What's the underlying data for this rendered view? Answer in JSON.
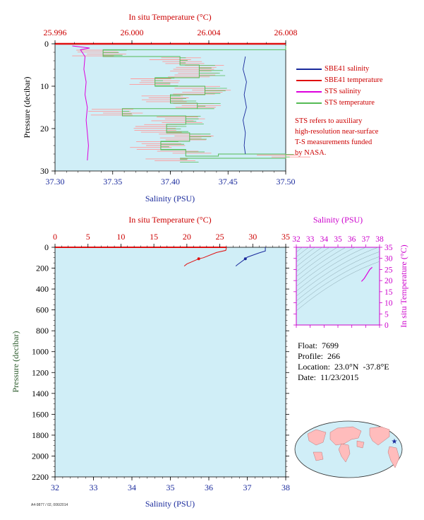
{
  "colors": {
    "plot_bg": "#d0eef7",
    "sbe_salinity": "#1a2a9c",
    "sbe_temperature": "#e01010",
    "sts_salinity": "#dd00dd",
    "sts_temperature": "#55bb55",
    "sts_temperature_band": "#ff9a9a",
    "axis_red": "#cc0000",
    "axis_blue": "#1a2a9c",
    "axis_green": "#2a5a2a",
    "axis_magenta": "#cc00cc"
  },
  "legend": {
    "items": [
      {
        "label": "SBE41 salinity",
        "color": "#1a2a9c"
      },
      {
        "label": "SBE41 temperature",
        "color": "#e01010"
      },
      {
        "label": "STS salinity",
        "color": "#dd00dd"
      },
      {
        "label": "STS temperature",
        "color": "#55bb55"
      }
    ]
  },
  "note": {
    "lines": [
      "STS refers to auxiliary",
      "high-resolution near-surface",
      "T-S measurements funded",
      "by NASA."
    ]
  },
  "info": {
    "float": "Float:  7699",
    "profile": "Profile:  266",
    "location": "Location:  23.0°N  -37.8°E",
    "date": "Date:  11/23/2015"
  },
  "footer": {
    "id": "A4-9877 / 02, 006/2014"
  },
  "chart_data": [
    {
      "id": "top-profile",
      "type": "line",
      "title": "",
      "top_axis_label": "In situ Temperature (°C)",
      "top_ticks": [
        "25.996",
        "26.000",
        "26.004",
        "26.008"
      ],
      "top_range": [
        25.996,
        26.008
      ],
      "xlabel": "Salinity (PSU)",
      "x_ticks": [
        "37.30",
        "37.35",
        "37.40",
        "37.45",
        "37.50"
      ],
      "xlim": [
        37.3,
        37.5
      ],
      "ylabel": "Pressure (decibar)",
      "y_ticks": [
        "0",
        "10",
        "20",
        "30"
      ],
      "ylim": [
        30,
        0
      ],
      "series": [
        {
          "name": "SBE41 salinity",
          "axis": "salinity",
          "points": [
            [
              37.465,
              3
            ],
            [
              37.463,
              6
            ],
            [
              37.466,
              9
            ],
            [
              37.464,
              12
            ],
            [
              37.466,
              15
            ],
            [
              37.463,
              18
            ],
            [
              37.465,
              21
            ],
            [
              37.464,
              24
            ],
            [
              37.465,
              26
            ]
          ]
        },
        {
          "name": "STS salinity",
          "axis": "salinity",
          "points": [
            [
              37.315,
              0.5
            ],
            [
              37.33,
              1.0
            ],
            [
              37.322,
              1.4
            ],
            [
              37.326,
              3
            ],
            [
              37.325,
              6
            ],
            [
              37.327,
              9
            ],
            [
              37.326,
              12
            ],
            [
              37.328,
              15
            ],
            [
              37.327,
              18
            ],
            [
              37.328,
              21
            ],
            [
              37.329,
              24
            ],
            [
              37.328,
              27.5
            ]
          ]
        },
        {
          "name": "STS temperature",
          "axis": "temperature",
          "points": [
            [
              26.008,
              0.5
            ],
            [
              25.9985,
              1.4
            ],
            [
              26.0025,
              3
            ],
            [
              26.0035,
              5
            ],
            [
              26.0012,
              8
            ],
            [
              26.0038,
              10
            ],
            [
              26.002,
              12
            ],
            [
              26.0034,
              14
            ],
            [
              25.9995,
              15.3
            ],
            [
              26.0028,
              17
            ],
            [
              26.0018,
              19
            ],
            [
              26.003,
              21
            ],
            [
              26.0015,
              23
            ],
            [
              26.0028,
              25
            ],
            [
              26.0045,
              26.5
            ],
            [
              26.008,
              26
            ],
            [
              26.0025,
              27
            ]
          ]
        }
      ],
      "note_visible": "pink band behind STS temperature trace"
    },
    {
      "id": "bottom-profile",
      "type": "line",
      "top_axis_label": "In situ Temperature (°C)",
      "top_ticks": [
        "0",
        "5",
        "10",
        "15",
        "20",
        "25",
        "30",
        "35"
      ],
      "top_range": [
        0,
        35
      ],
      "xlabel": "Salinity (PSU)",
      "x_ticks": [
        "32",
        "33",
        "34",
        "35",
        "36",
        "37",
        "38"
      ],
      "xlim": [
        32,
        38
      ],
      "ylabel": "Pressure (decibar)",
      "y_ticks": [
        "0",
        "200",
        "400",
        "600",
        "800",
        "1000",
        "1200",
        "1400",
        "1600",
        "1800",
        "2000",
        "2200"
      ],
      "ylim": [
        2200,
        0
      ],
      "series": [
        {
          "name": "SBE41 temperature",
          "axis": "temperature",
          "points": [
            [
              26.0,
              0
            ],
            [
              26.0,
              5
            ],
            [
              25.9,
              30
            ],
            [
              24.5,
              50
            ],
            [
              22.5,
              100
            ],
            [
              21.8,
              110
            ],
            [
              20.0,
              160
            ],
            [
              19.6,
              180
            ]
          ]
        },
        {
          "name": "SBE41 salinity",
          "axis": "salinity",
          "points": [
            [
              37.47,
              0
            ],
            [
              37.47,
              35
            ],
            [
              37.3,
              55
            ],
            [
              37.0,
              95
            ],
            [
              36.95,
              110
            ],
            [
              36.75,
              165
            ],
            [
              36.7,
              180
            ]
          ]
        }
      ]
    },
    {
      "id": "ts-diagram",
      "type": "line",
      "top_axis_label": "Salinity (PSU)",
      "x_ticks": [
        "32",
        "33",
        "34",
        "35",
        "36",
        "37",
        "38"
      ],
      "xlim": [
        32,
        38
      ],
      "right_axis_label": "In situ Temperature (°C)",
      "y_ticks": [
        "0",
        "5",
        "10",
        "15",
        "20",
        "25",
        "30",
        "35"
      ],
      "ylim": [
        0,
        35
      ],
      "series": [
        {
          "name": "T-S curve",
          "points": [
            [
              36.7,
              19.6
            ],
            [
              36.9,
              21.0
            ],
            [
              37.1,
              23.0
            ],
            [
              37.3,
              25.0
            ],
            [
              37.47,
              26.0
            ]
          ]
        }
      ]
    }
  ],
  "map": {
    "marker": "★"
  }
}
